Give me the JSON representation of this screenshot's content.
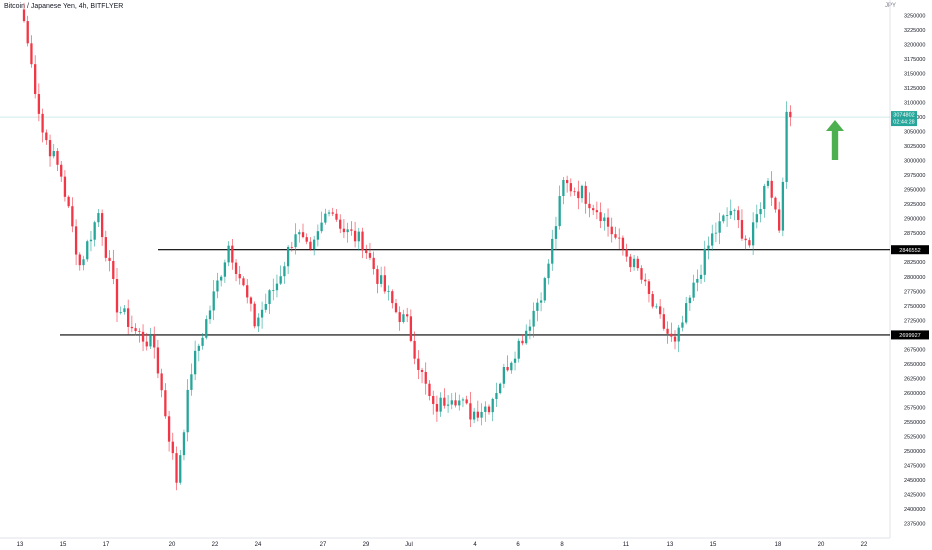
{
  "header": {
    "title": "Bitcoin / Japanese Yen, 4h, BITFLYER",
    "currency": "JPY"
  },
  "colors": {
    "up": "#26a69a",
    "down": "#f23645",
    "axis_text": "#131722",
    "price_line": "#26a69a",
    "arrow": "#4caf50"
  },
  "chart_data": {
    "type": "candlestick",
    "y_range": [
      2362500,
      3262500
    ],
    "y_ticks": [
      3250000,
      3225000,
      3200000,
      3175000,
      3150000,
      3125000,
      3100000,
      3075000,
      3050000,
      3025000,
      3000000,
      2975000,
      2950000,
      2925000,
      2900000,
      2875000,
      2850000,
      2825000,
      2800000,
      2775000,
      2750000,
      2725000,
      2700000,
      2675000,
      2650000,
      2625000,
      2600000,
      2575000,
      2550000,
      2525000,
      2500000,
      2475000,
      2450000,
      2425000,
      2400000,
      2375000
    ],
    "x_ticks": [
      "13",
      "15",
      "17",
      "20",
      "22",
      "24",
      "27",
      "29",
      "Jul",
      "4",
      "6",
      "8",
      "11",
      "13",
      "15",
      "18",
      "20",
      "22"
    ],
    "current_price": {
      "value": 3074802,
      "label": "3074802",
      "countdown": "02:44:28"
    },
    "levels": [
      {
        "value": 2846552,
        "label": "2846552"
      },
      {
        "value": 2699927,
        "label": "2699927"
      }
    ],
    "annotation": "up-arrow",
    "waypoints": [
      [
        0,
        3240000
      ],
      [
        5,
        3050000
      ],
      [
        10,
        2975000
      ],
      [
        15,
        2820000
      ],
      [
        20,
        2910000
      ],
      [
        25,
        2750000
      ],
      [
        30,
        2705000
      ],
      [
        35,
        2680000
      ],
      [
        41,
        2450000
      ],
      [
        45,
        2640000
      ],
      [
        50,
        2745000
      ],
      [
        55,
        2855000
      ],
      [
        58,
        2800000
      ],
      [
        62,
        2720000
      ],
      [
        68,
        2790000
      ],
      [
        73,
        2880000
      ],
      [
        77,
        2835000
      ],
      [
        82,
        2925000
      ],
      [
        86,
        2880000
      ],
      [
        91,
        2860000
      ],
      [
        95,
        2800000
      ],
      [
        100,
        2740000
      ],
      [
        103,
        2720000
      ],
      [
        106,
        2650000
      ],
      [
        110,
        2570000
      ],
      [
        115,
        2600000
      ],
      [
        120,
        2565000
      ],
      [
        125,
        2580000
      ],
      [
        130,
        2650000
      ],
      [
        135,
        2710000
      ],
      [
        140,
        2790000
      ],
      [
        145,
        2960000
      ],
      [
        150,
        2945000
      ],
      [
        155,
        2910000
      ],
      [
        160,
        2855000
      ],
      [
        165,
        2810000
      ],
      [
        170,
        2735000
      ],
      [
        175,
        2680000
      ],
      [
        180,
        2780000
      ],
      [
        185,
        2870000
      ],
      [
        190,
        2915000
      ],
      [
        195,
        2855000
      ],
      [
        200,
        2975000
      ],
      [
        203,
        2885000
      ],
      [
        205,
        3070000
      ],
      [
        206,
        3074802
      ]
    ]
  }
}
